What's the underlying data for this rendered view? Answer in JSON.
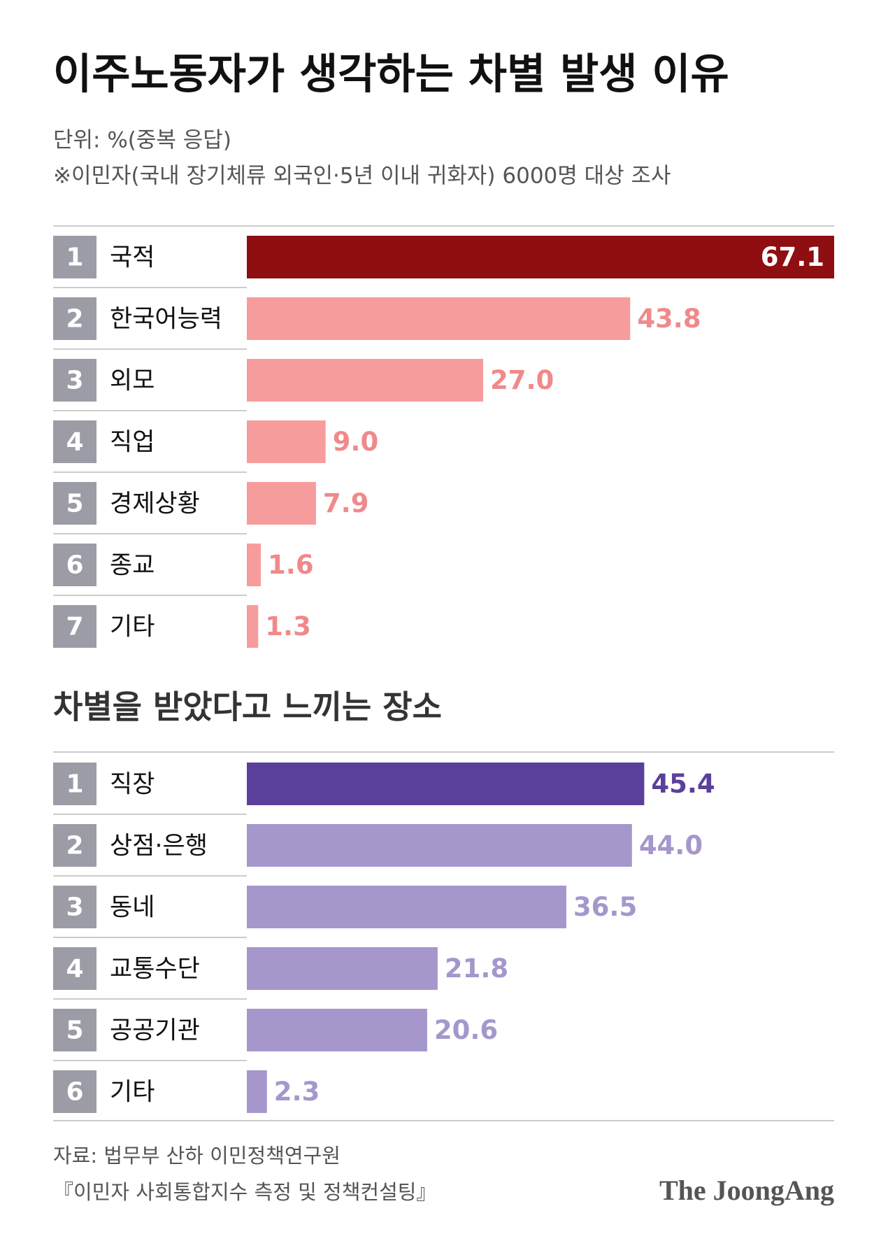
{
  "title": "이주노동자가 생각하는 차별 발생 이유",
  "subtitle": "단위: %(중복 응답)",
  "note": "※이민자(국내 장기체류 외국인·5년 이내 귀화자) 6000명 대상 조사",
  "chart_data": [
    {
      "type": "bar",
      "ranks": [
        1,
        2,
        3,
        4,
        5,
        6,
        7
      ],
      "categories": [
        "국적",
        "한국어능력",
        "외모",
        "직업",
        "경제상황",
        "종교",
        "기타"
      ],
      "values": [
        67.1,
        43.8,
        27.0,
        9.0,
        7.9,
        1.6,
        1.3
      ],
      "value_labels": [
        "67.1",
        "43.8",
        "27.0",
        "9.0",
        "7.9",
        "1.6",
        "1.3"
      ],
      "color": "#f79c9c",
      "highlight_color": "#8e0e11",
      "label_color": "#f0898a",
      "highlight_label_color": "#ffffff"
    },
    {
      "type": "bar",
      "title": "차별을 받았다고 느끼는 장소",
      "ranks": [
        1,
        2,
        3,
        4,
        5,
        6
      ],
      "categories": [
        "직장",
        "상점·은행",
        "동네",
        "교통수단",
        "공공기관",
        "기타"
      ],
      "values": [
        45.4,
        44.0,
        36.5,
        21.8,
        20.6,
        2.3
      ],
      "value_labels": [
        "45.4",
        "44.0",
        "36.5",
        "21.8",
        "20.6",
        "2.3"
      ],
      "color": "#a597cb",
      "highlight_color": "#5b409b",
      "label_color": "#a597cb",
      "highlight_label_color": "#5b409b"
    }
  ],
  "source": [
    "자료: 법무부 산하 이민정책연구원",
    "『이민자 사회통합지수 측정 및 정책컨설팅』"
  ],
  "logo": "The JoongAng"
}
